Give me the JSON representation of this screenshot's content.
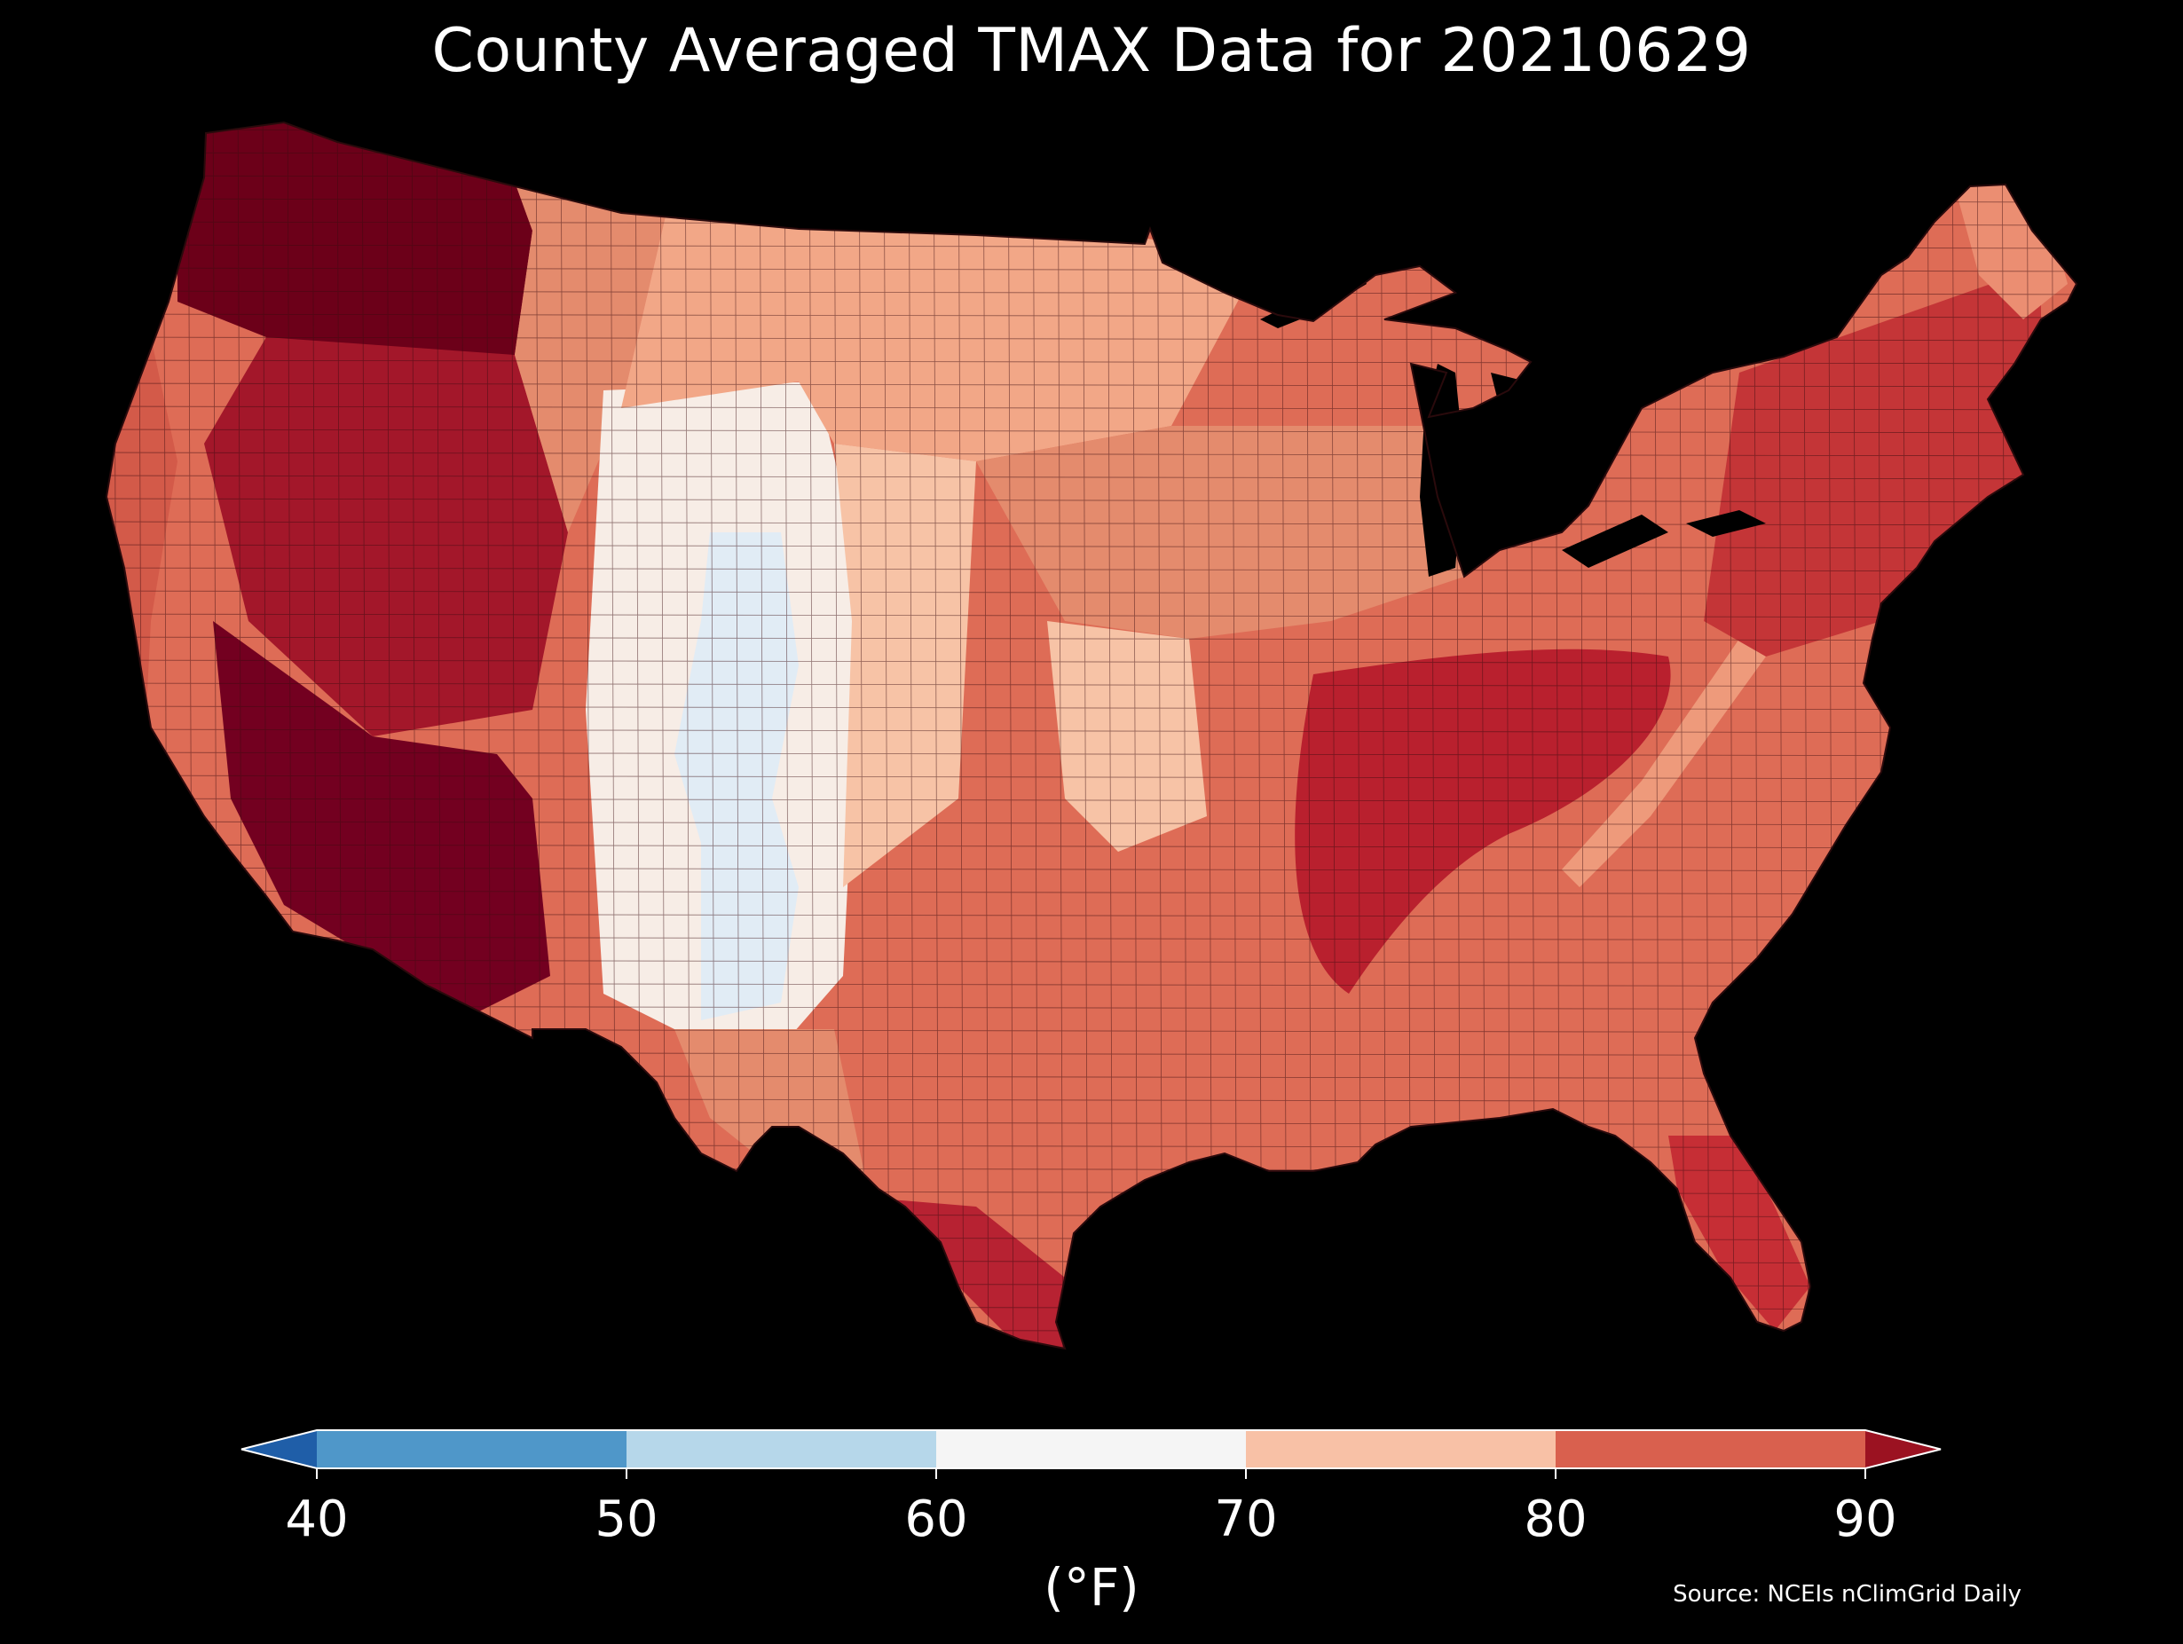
{
  "title": "County Averaged TMAX Data for 20210629",
  "source": "Source: NCEIs nClimGrid Daily",
  "colorbar": {
    "units": "(°F)",
    "ticks": [
      "40",
      "50",
      "60",
      "70",
      "80",
      "90"
    ],
    "bins": [
      {
        "range": "<40",
        "color": "#1f5ea8"
      },
      {
        "range": "40-50",
        "color": "#4f97c9"
      },
      {
        "range": "50-60",
        "color": "#b6d7ea"
      },
      {
        "range": "60-70",
        "color": "#f5f5f5"
      },
      {
        "range": "70-80",
        "color": "#f8c1a6"
      },
      {
        "range": "80-90",
        "color": "#d9604e"
      },
      {
        "range": ">90",
        "color": "#9b1221"
      }
    ],
    "extend": "both"
  },
  "map": {
    "region": "Contiguous United States, county level",
    "land_colors": {
      "northwest_interior": "#6c0019",
      "pacific_coast": "#d35a49",
      "great_basin": "#a3172a",
      "southwest_desert": "#730020",
      "rockies_high": "#f7ede6",
      "rockies_peaks": "#e1ecf5",
      "high_plains": "#f7c3a6",
      "northern_plains": "#f2a787",
      "midwest": "#e48b6d",
      "south_central": "#de6c56",
      "tennessee_valley": "#b9202e",
      "southeast": "#d24d43",
      "appalachian_ridge": "#ee9a7b",
      "northeast": "#c43537",
      "maine_north": "#eb8e72",
      "florida": "#c62e35",
      "texas_south": "#b72232"
    },
    "water_color": "#000000",
    "county_border_color": "#3a0d10"
  }
}
